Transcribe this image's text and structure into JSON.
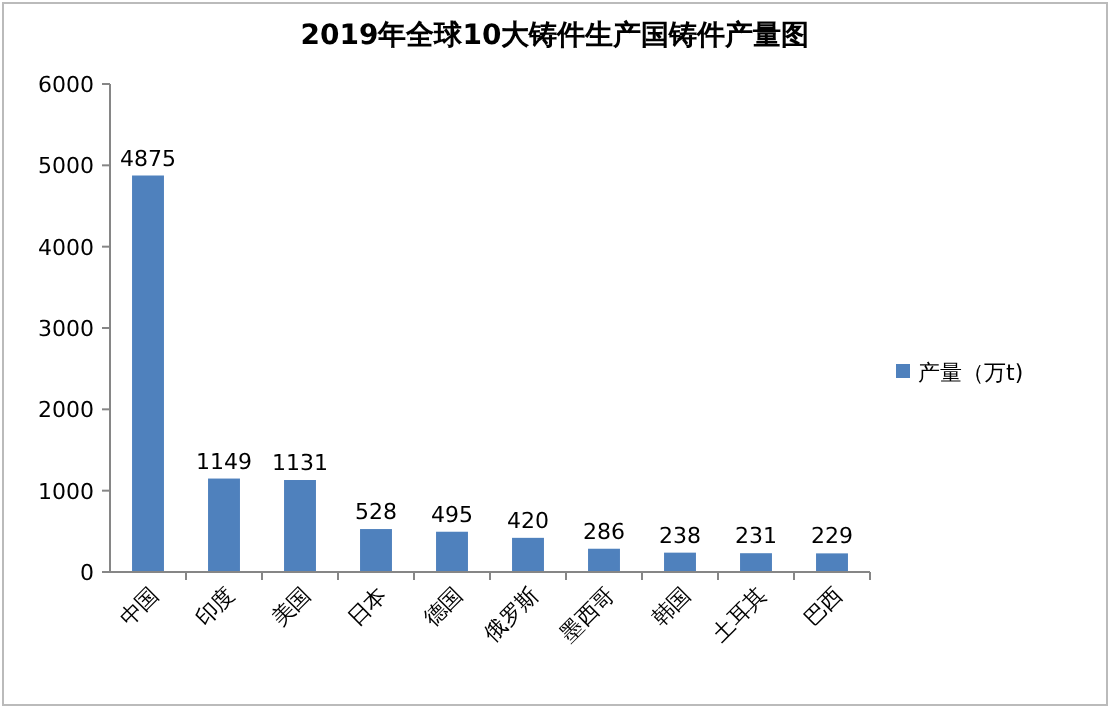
{
  "chart_data": {
    "type": "bar",
    "title": "2019年全球10大铸件生产国铸件产量图",
    "categories": [
      "中国",
      "印度",
      "美国",
      "日本",
      "德国",
      "俄罗斯",
      "墨西哥",
      "韩国",
      "土耳其",
      "巴西"
    ],
    "series": [
      {
        "name": "产量（万t)",
        "color": "#4f81bd",
        "values": [
          4875,
          1149,
          1131,
          528,
          495,
          420,
          286,
          238,
          231,
          229
        ]
      }
    ],
    "ylim": [
      0,
      6000
    ],
    "yticks": [
      0,
      1000,
      2000,
      3000,
      4000,
      5000,
      6000
    ],
    "data_labels": true,
    "legend": "right",
    "grid": false
  }
}
